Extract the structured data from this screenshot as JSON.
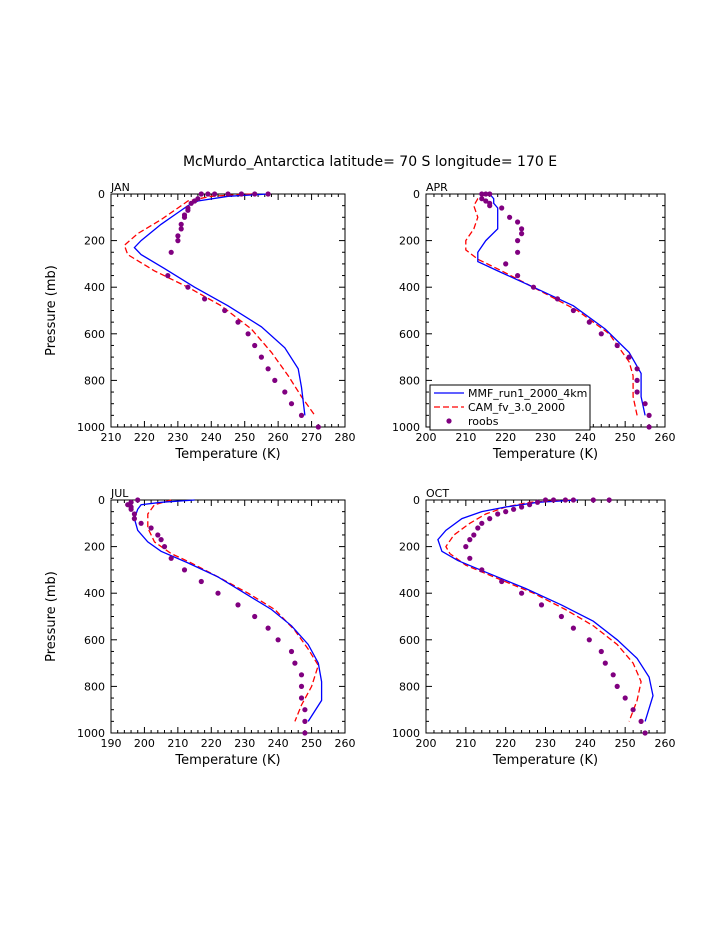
{
  "title": "McMurdo_Antarctica  latitude= 70 S longitude= 170 E",
  "legend": {
    "mmf": "MMF_run1_2000_4km",
    "cam": "CAM_fv_3.0_2000",
    "roobs": "roobs"
  },
  "colors": {
    "mmf": "#0000ff",
    "cam": "#ff0000",
    "roobs": "#800080"
  },
  "chart_data": [
    {
      "type": "line",
      "label": "JAN",
      "xlabel": "Temperature (K)",
      "ylabel": "Pressure (mb)",
      "xlim": [
        210,
        280
      ],
      "ylim": [
        0,
        1000
      ],
      "xticks": [
        "210",
        "220",
        "230",
        "240",
        "250",
        "260",
        "270",
        "280"
      ],
      "yticks": [
        "0",
        "200",
        "400",
        "600",
        "800",
        "1000"
      ],
      "mmf": [
        [
          257,
          0
        ],
        [
          245,
          10
        ],
        [
          236,
          30
        ],
        [
          233,
          50
        ],
        [
          230,
          80
        ],
        [
          225,
          130
        ],
        [
          219,
          200
        ],
        [
          217,
          230
        ],
        [
          219,
          260
        ],
        [
          226,
          320
        ],
        [
          235,
          400
        ],
        [
          245,
          480
        ],
        [
          255,
          570
        ],
        [
          262,
          660
        ],
        [
          266,
          750
        ],
        [
          267,
          830
        ],
        [
          268,
          950
        ]
      ],
      "cam": [
        [
          252,
          0
        ],
        [
          240,
          10
        ],
        [
          233,
          30
        ],
        [
          230,
          60
        ],
        [
          225,
          110
        ],
        [
          218,
          170
        ],
        [
          214,
          220
        ],
        [
          215,
          260
        ],
        [
          223,
          330
        ],
        [
          233,
          400
        ],
        [
          243,
          480
        ],
        [
          252,
          580
        ],
        [
          258,
          680
        ],
        [
          263,
          780
        ],
        [
          267,
          870
        ],
        [
          271,
          950
        ]
      ],
      "roobs": [
        [
          257,
          0
        ],
        [
          253,
          0
        ],
        [
          249,
          0
        ],
        [
          245,
          0
        ],
        [
          241,
          0
        ],
        [
          239,
          0
        ],
        [
          237,
          0
        ],
        [
          236,
          20
        ],
        [
          235,
          30
        ],
        [
          234,
          40
        ],
        [
          233,
          60
        ],
        [
          233,
          70
        ],
        [
          232,
          90
        ],
        [
          232,
          100
        ],
        [
          231,
          130
        ],
        [
          231,
          150
        ],
        [
          230,
          180
        ],
        [
          230,
          200
        ],
        [
          228,
          250
        ],
        [
          227,
          350
        ],
        [
          233,
          400
        ],
        [
          238,
          450
        ],
        [
          244,
          500
        ],
        [
          248,
          550
        ],
        [
          251,
          600
        ],
        [
          253,
          650
        ],
        [
          255,
          700
        ],
        [
          257,
          750
        ],
        [
          259,
          800
        ],
        [
          262,
          850
        ],
        [
          264,
          900
        ],
        [
          267,
          950
        ],
        [
          272,
          1000
        ]
      ]
    },
    {
      "type": "line",
      "label": "APR",
      "xlabel": "Temperature (K)",
      "ylabel": "",
      "xlim": [
        200,
        260
      ],
      "ylim": [
        0,
        1000
      ],
      "xticks": [
        "200",
        "210",
        "220",
        "230",
        "240",
        "250",
        "260"
      ],
      "yticks": [
        "0",
        "200",
        "400",
        "600",
        "800",
        "1000"
      ],
      "mmf": [
        [
          216,
          0
        ],
        [
          217,
          20
        ],
        [
          217,
          40
        ],
        [
          218,
          60
        ],
        [
          218,
          100
        ],
        [
          218,
          150
        ],
        [
          215,
          200
        ],
        [
          213,
          250
        ],
        [
          213,
          290
        ],
        [
          218,
          330
        ],
        [
          227,
          400
        ],
        [
          237,
          480
        ],
        [
          245,
          580
        ],
        [
          251,
          680
        ],
        [
          254,
          770
        ],
        [
          254,
          830
        ],
        [
          254,
          870
        ],
        [
          255,
          950
        ]
      ],
      "cam": [
        [
          215,
          0
        ],
        [
          213,
          20
        ],
        [
          212,
          50
        ],
        [
          213,
          100
        ],
        [
          212,
          150
        ],
        [
          210,
          200
        ],
        [
          210,
          240
        ],
        [
          213,
          280
        ],
        [
          219,
          330
        ],
        [
          228,
          410
        ],
        [
          238,
          500
        ],
        [
          246,
          600
        ],
        [
          251,
          720
        ],
        [
          252,
          780
        ],
        [
          252,
          870
        ],
        [
          253,
          950
        ]
      ],
      "roobs": [
        [
          216,
          0
        ],
        [
          215,
          0
        ],
        [
          214,
          0
        ],
        [
          214,
          20
        ],
        [
          215,
          30
        ],
        [
          216,
          40
        ],
        [
          216,
          50
        ],
        [
          219,
          60
        ],
        [
          221,
          100
        ],
        [
          223,
          120
        ],
        [
          224,
          150
        ],
        [
          224,
          170
        ],
        [
          223,
          200
        ],
        [
          223,
          250
        ],
        [
          220,
          300
        ],
        [
          223,
          350
        ],
        [
          227,
          400
        ],
        [
          233,
          450
        ],
        [
          237,
          500
        ],
        [
          241,
          550
        ],
        [
          244,
          600
        ],
        [
          248,
          650
        ],
        [
          251,
          700
        ],
        [
          253,
          750
        ],
        [
          253,
          800
        ],
        [
          253,
          850
        ],
        [
          255,
          900
        ],
        [
          256,
          950
        ],
        [
          256,
          1000
        ]
      ]
    },
    {
      "type": "line",
      "label": "JUL",
      "xlabel": "Temperature (K)",
      "ylabel": "Pressure (mb)",
      "xlim": [
        190,
        260
      ],
      "ylim": [
        0,
        1000
      ],
      "xticks": [
        "190",
        "200",
        "210",
        "220",
        "230",
        "240",
        "250",
        "260"
      ],
      "yticks": [
        "0",
        "200",
        "400",
        "600",
        "800",
        "1000"
      ],
      "mmf": [
        [
          215,
          0
        ],
        [
          205,
          10
        ],
        [
          199,
          20
        ],
        [
          198,
          40
        ],
        [
          197,
          80
        ],
        [
          198,
          130
        ],
        [
          201,
          180
        ],
        [
          205,
          220
        ],
        [
          213,
          270
        ],
        [
          222,
          330
        ],
        [
          230,
          400
        ],
        [
          238,
          470
        ],
        [
          244,
          540
        ],
        [
          249,
          620
        ],
        [
          252,
          700
        ],
        [
          253,
          780
        ],
        [
          253,
          860
        ],
        [
          249,
          950
        ]
      ],
      "cam": [
        [
          208,
          0
        ],
        [
          203,
          20
        ],
        [
          201,
          60
        ],
        [
          201,
          120
        ],
        [
          203,
          180
        ],
        [
          208,
          230
        ],
        [
          214,
          270
        ],
        [
          222,
          330
        ],
        [
          231,
          400
        ],
        [
          239,
          470
        ],
        [
          245,
          560
        ],
        [
          249,
          640
        ],
        [
          252,
          710
        ],
        [
          250,
          800
        ],
        [
          247,
          880
        ],
        [
          245,
          950
        ]
      ],
      "roobs": [
        [
          198,
          0
        ],
        [
          196,
          10
        ],
        [
          195,
          20
        ],
        [
          196,
          30
        ],
        [
          196,
          40
        ],
        [
          197,
          60
        ],
        [
          197,
          80
        ],
        [
          199,
          100
        ],
        [
          202,
          120
        ],
        [
          204,
          150
        ],
        [
          205,
          170
        ],
        [
          206,
          200
        ],
        [
          208,
          250
        ],
        [
          212,
          300
        ],
        [
          217,
          350
        ],
        [
          222,
          400
        ],
        [
          228,
          450
        ],
        [
          233,
          500
        ],
        [
          237,
          550
        ],
        [
          240,
          600
        ],
        [
          244,
          650
        ],
        [
          245,
          700
        ],
        [
          247,
          750
        ],
        [
          247,
          800
        ],
        [
          247,
          850
        ],
        [
          248,
          900
        ],
        [
          248,
          950
        ],
        [
          248,
          1000
        ]
      ]
    },
    {
      "type": "line",
      "label": "OCT",
      "xlabel": "Temperature (K)",
      "ylabel": "",
      "xlim": [
        200,
        260
      ],
      "ylim": [
        0,
        1000
      ],
      "xticks": [
        "200",
        "210",
        "220",
        "230",
        "240",
        "250",
        "260"
      ],
      "yticks": [
        "0",
        "200",
        "400",
        "600",
        "800",
        "1000"
      ],
      "mmf": [
        [
          238,
          0
        ],
        [
          228,
          10
        ],
        [
          220,
          30
        ],
        [
          214,
          50
        ],
        [
          209,
          80
        ],
        [
          205,
          130
        ],
        [
          203,
          170
        ],
        [
          204,
          220
        ],
        [
          208,
          260
        ],
        [
          215,
          310
        ],
        [
          225,
          380
        ],
        [
          234,
          450
        ],
        [
          242,
          520
        ],
        [
          248,
          600
        ],
        [
          253,
          680
        ],
        [
          256,
          760
        ],
        [
          257,
          840
        ],
        [
          255,
          950
        ]
      ],
      "cam": [
        [
          236,
          0
        ],
        [
          226,
          10
        ],
        [
          220,
          30
        ],
        [
          215,
          60
        ],
        [
          211,
          100
        ],
        [
          207,
          150
        ],
        [
          205,
          200
        ],
        [
          206,
          230
        ],
        [
          210,
          280
        ],
        [
          217,
          330
        ],
        [
          227,
          400
        ],
        [
          235,
          470
        ],
        [
          242,
          540
        ],
        [
          248,
          620
        ],
        [
          252,
          700
        ],
        [
          254,
          780
        ],
        [
          253,
          860
        ],
        [
          251,
          950
        ]
      ],
      "roobs": [
        [
          246,
          0
        ],
        [
          242,
          0
        ],
        [
          237,
          0
        ],
        [
          235,
          0
        ],
        [
          232,
          0
        ],
        [
          230,
          0
        ],
        [
          228,
          10
        ],
        [
          226,
          20
        ],
        [
          224,
          30
        ],
        [
          222,
          40
        ],
        [
          220,
          50
        ],
        [
          218,
          60
        ],
        [
          216,
          80
        ],
        [
          214,
          100
        ],
        [
          213,
          120
        ],
        [
          212,
          150
        ],
        [
          211,
          170
        ],
        [
          210,
          200
        ],
        [
          211,
          250
        ],
        [
          214,
          300
        ],
        [
          219,
          350
        ],
        [
          224,
          400
        ],
        [
          229,
          450
        ],
        [
          234,
          500
        ],
        [
          237,
          550
        ],
        [
          241,
          600
        ],
        [
          244,
          650
        ],
        [
          245,
          700
        ],
        [
          247,
          750
        ],
        [
          248,
          800
        ],
        [
          250,
          850
        ],
        [
          252,
          900
        ],
        [
          254,
          950
        ],
        [
          255,
          1000
        ]
      ]
    }
  ]
}
